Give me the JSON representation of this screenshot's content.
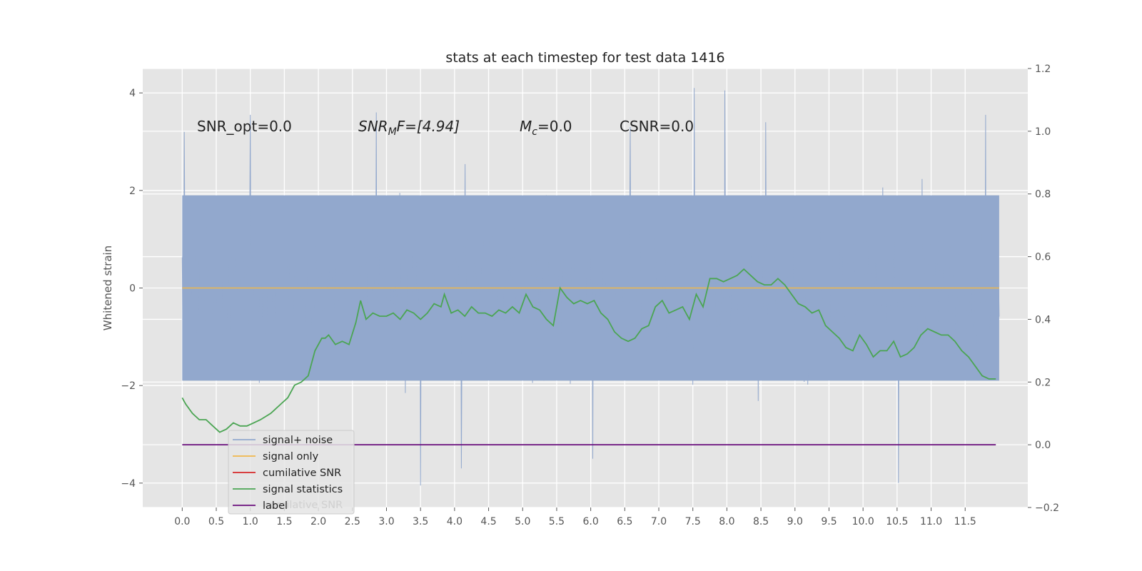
{
  "chart_data": {
    "type": "line",
    "title": "stats at each timestep for test data 1416",
    "ylabel": "Whitened strain",
    "xlabel": "",
    "xlim": [
      -0.58,
      12.42
    ],
    "ylim": [
      -4.5,
      4.5
    ],
    "y2lim": [
      -0.2,
      1.2
    ],
    "grid": true,
    "x_ticks": [
      "0.0",
      "0.5",
      "1.0",
      "1.5",
      "2.0",
      "2.5",
      "3.0",
      "3.5",
      "4.0",
      "4.5",
      "5.0",
      "5.5",
      "6.0",
      "6.5",
      "7.0",
      "7.5",
      "8.0",
      "8.5",
      "9.0",
      "9.5",
      "10.0",
      "10.5",
      "11.0",
      "11.5"
    ],
    "y_ticks": [
      "4",
      "2",
      "0",
      "−2",
      "−4"
    ],
    "y2_ticks": [
      "1.2",
      "1.0",
      "0.8",
      "0.6",
      "0.4",
      "0.2",
      "0.0",
      "−0.2"
    ],
    "annotations": {
      "snr_opt": "SNR_opt=0.0",
      "snr_mf_main": "SNR",
      "snr_mf_sub": "M",
      "snr_mf_tail": "F=[4.94]",
      "mc_main": "M",
      "mc_sub": "c",
      "mc_tail": "=0.0",
      "csnr": "CSNR=0.0"
    },
    "legend": {
      "placement": "lower-left",
      "items": [
        "signal+ noise",
        "signal only",
        "cumilative SNR",
        "signal statistics",
        "label"
      ],
      "ghost_text": "cumilative SNR"
    },
    "colors": {
      "noise": "#92a8cd",
      "signal_only": "#f0b74a",
      "cumulative_snr": "#d62728",
      "stats": "#4ba553",
      "label": "#6a0e7d",
      "grid": "#ffffff",
      "background": "#e5e5e5"
    },
    "series": [
      {
        "name": "signal+ noise",
        "axis": "left",
        "description_values": "whitened noise, amplitude approx ±2 with spikes",
        "x_range": [
          0.0,
          12.0
        ],
        "spikes": [
          [
            0.03,
            3.2
          ],
          [
            1.0,
            3.55
          ],
          [
            2.85,
            3.6
          ],
          [
            3.5,
            -4.05
          ],
          [
            4.1,
            -3.7
          ],
          [
            6.58,
            3.3
          ],
          [
            6.0,
            1.25
          ],
          [
            7.52,
            4.1
          ],
          [
            7.97,
            4.05
          ],
          [
            10.52,
            -4.0
          ],
          [
            11.8,
            3.55
          ],
          [
            8.57,
            3.4
          ],
          [
            6.03,
            -3.5
          ]
        ]
      },
      {
        "name": "signal only",
        "axis": "left",
        "x": [
          0.0,
          12.0
        ],
        "y": [
          0.0,
          0.0
        ]
      },
      {
        "name": "signal statistics",
        "axis": "right",
        "x": [
          0.0,
          0.05,
          0.15,
          0.25,
          0.35,
          0.45,
          0.55,
          0.65,
          0.75,
          0.85,
          0.95,
          1.05,
          1.15,
          1.3,
          1.45,
          1.55,
          1.65,
          1.75,
          1.85,
          1.95,
          2.05,
          2.1,
          2.15,
          2.25,
          2.35,
          2.45,
          2.55,
          2.62,
          2.7,
          2.8,
          2.9,
          3.0,
          3.1,
          3.2,
          3.3,
          3.4,
          3.5,
          3.6,
          3.7,
          3.8,
          3.85,
          3.95,
          4.05,
          4.15,
          4.25,
          4.35,
          4.45,
          4.55,
          4.65,
          4.75,
          4.85,
          4.95,
          5.05,
          5.15,
          5.25,
          5.35,
          5.45,
          5.55,
          5.65,
          5.75,
          5.85,
          5.95,
          6.05,
          6.15,
          6.25,
          6.35,
          6.45,
          6.55,
          6.65,
          6.75,
          6.85,
          6.95,
          7.05,
          7.15,
          7.25,
          7.35,
          7.45,
          7.55,
          7.65,
          7.75,
          7.85,
          7.95,
          8.05,
          8.15,
          8.25,
          8.35,
          8.45,
          8.55,
          8.65,
          8.75,
          8.85,
          8.95,
          9.05,
          9.15,
          9.25,
          9.35,
          9.45,
          9.55,
          9.65,
          9.75,
          9.85,
          9.95,
          10.05,
          10.15,
          10.25,
          10.35,
          10.45,
          10.55,
          10.65,
          10.75,
          10.85,
          10.95,
          11.05,
          11.15,
          11.25,
          11.35,
          11.45,
          11.55,
          11.65,
          11.75,
          11.85,
          11.95
        ],
        "y": [
          0.15,
          0.13,
          0.1,
          0.08,
          0.08,
          0.06,
          0.04,
          0.05,
          0.07,
          0.06,
          0.06,
          0.07,
          0.08,
          0.1,
          0.13,
          0.15,
          0.19,
          0.2,
          0.22,
          0.3,
          0.34,
          0.34,
          0.35,
          0.32,
          0.33,
          0.32,
          0.39,
          0.46,
          0.4,
          0.42,
          0.41,
          0.41,
          0.42,
          0.4,
          0.43,
          0.42,
          0.4,
          0.42,
          0.45,
          0.44,
          0.48,
          0.42,
          0.43,
          0.41,
          0.44,
          0.42,
          0.42,
          0.41,
          0.43,
          0.42,
          0.44,
          0.42,
          0.48,
          0.44,
          0.43,
          0.4,
          0.38,
          0.5,
          0.47,
          0.45,
          0.46,
          0.45,
          0.46,
          0.42,
          0.4,
          0.36,
          0.34,
          0.33,
          0.34,
          0.37,
          0.38,
          0.44,
          0.46,
          0.42,
          0.43,
          0.44,
          0.4,
          0.48,
          0.44,
          0.53,
          0.53,
          0.52,
          0.53,
          0.54,
          0.56,
          0.54,
          0.52,
          0.51,
          0.51,
          0.53,
          0.51,
          0.48,
          0.45,
          0.44,
          0.42,
          0.43,
          0.38,
          0.36,
          0.34,
          0.31,
          0.3,
          0.35,
          0.32,
          0.28,
          0.3,
          0.3,
          0.33,
          0.28,
          0.29,
          0.31,
          0.35,
          0.37,
          0.36,
          0.35,
          0.35,
          0.33,
          0.3,
          0.28,
          0.25,
          0.22,
          0.21,
          0.21
        ]
      },
      {
        "name": "label",
        "axis": "right",
        "x": [
          0.0,
          11.95
        ],
        "y": [
          0.0,
          0.0
        ]
      }
    ]
  }
}
